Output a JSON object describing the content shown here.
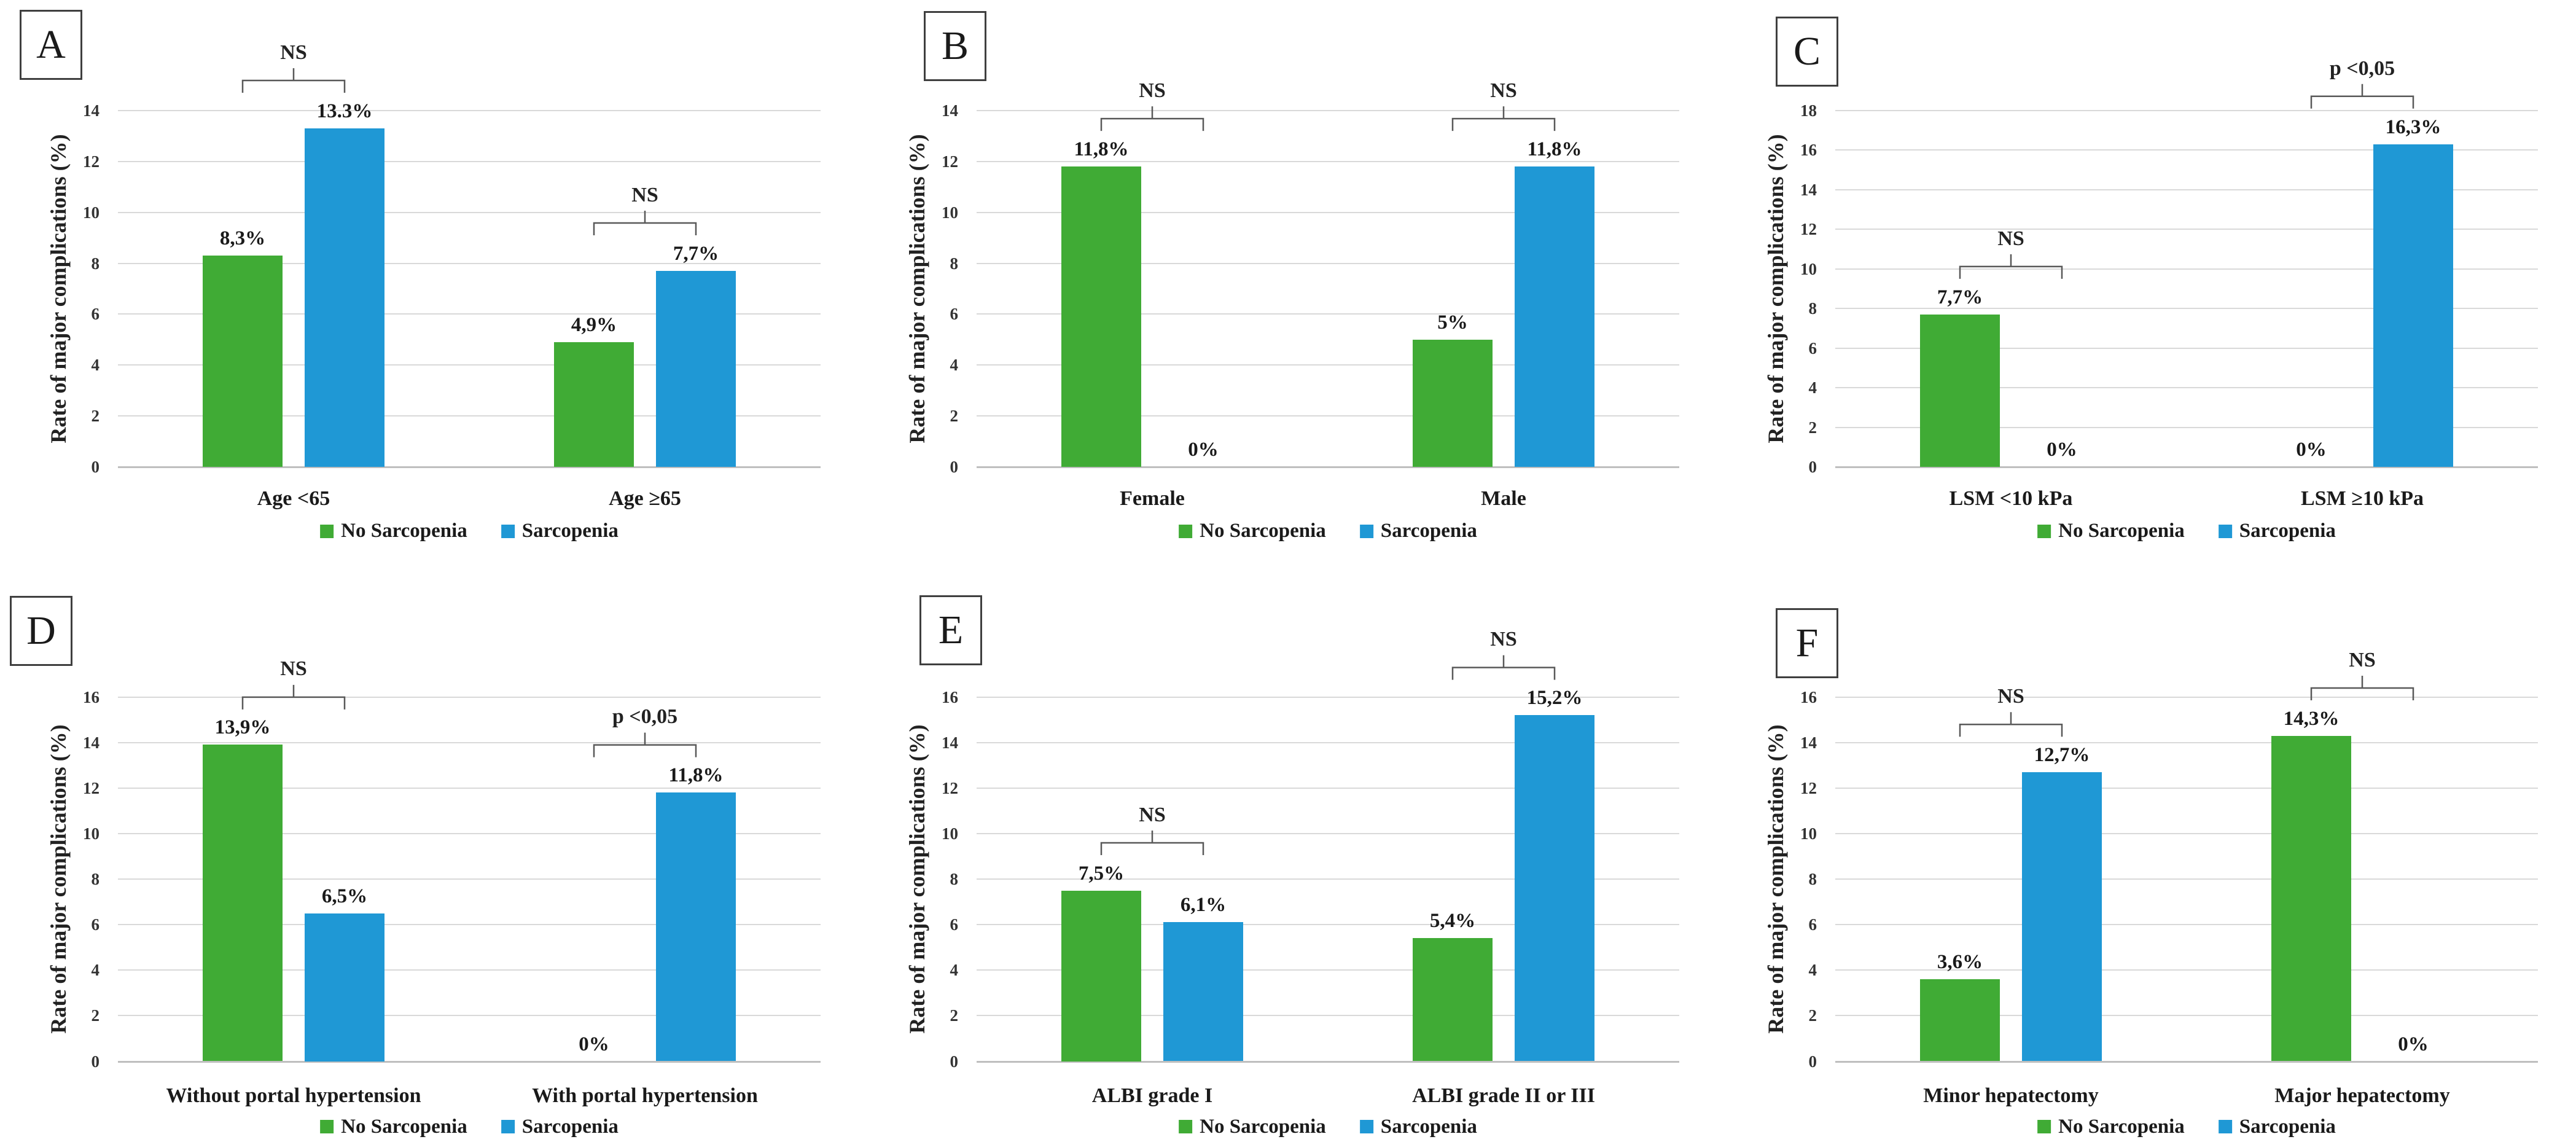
{
  "figure": {
    "ylabel": "Rate of major complications (%)",
    "legend": [
      {
        "label": "No Sarcopenia",
        "color": "#40AB35"
      },
      {
        "label": "Sarcopenia",
        "color": "#1F98D5"
      }
    ],
    "colors": {
      "no_sarcopenia": "#40AB35",
      "sarcopenia": "#1F98D5",
      "gridline": "#d9d9d9",
      "axis": "#bfbfbf",
      "bracket": "#595959"
    }
  },
  "chart_data": [
    {
      "panel": "A",
      "type": "bar",
      "ylabel": "Rate of major complications (%)",
      "ylim": [
        0,
        14
      ],
      "ytick_step": 2,
      "grid": true,
      "legend_position": "bottom",
      "series": [
        "No Sarcopenia",
        "Sarcopenia"
      ],
      "groups": [
        {
          "category": "Age <65",
          "values": [
            8.3,
            13.3
          ],
          "value_labels": [
            "8,3%",
            "13.3%"
          ],
          "significance": "NS"
        },
        {
          "category": "Age ≥65",
          "values": [
            4.9,
            7.7
          ],
          "value_labels": [
            "4,9%",
            "7,7%"
          ],
          "significance": "NS"
        }
      ]
    },
    {
      "panel": "B",
      "type": "bar",
      "ylabel": "Rate of major complications (%)",
      "ylim": [
        0,
        14
      ],
      "ytick_step": 2,
      "grid": true,
      "legend_position": "bottom",
      "series": [
        "No Sarcopenia",
        "Sarcopenia"
      ],
      "groups": [
        {
          "category": "Female",
          "values": [
            11.8,
            0
          ],
          "value_labels": [
            "11,8%",
            "0%"
          ],
          "significance": "NS"
        },
        {
          "category": "Male",
          "values": [
            5,
            11.8
          ],
          "value_labels": [
            "5%",
            "11,8%"
          ],
          "significance": "NS"
        }
      ]
    },
    {
      "panel": "C",
      "type": "bar",
      "ylabel": "Rate of major complications (%)",
      "ylim": [
        0,
        18
      ],
      "ytick_step": 2,
      "grid": true,
      "legend_position": "bottom",
      "series": [
        "No Sarcopenia",
        "Sarcopenia"
      ],
      "groups": [
        {
          "category": "LSM <10 kPa",
          "values": [
            7.7,
            0
          ],
          "value_labels": [
            "7,7%",
            "0%"
          ],
          "significance": "NS"
        },
        {
          "category": "LSM ≥10 kPa",
          "values": [
            0,
            16.3
          ],
          "value_labels": [
            "0%",
            "16,3%"
          ],
          "significance": "p <0,05"
        }
      ]
    },
    {
      "panel": "D",
      "type": "bar",
      "ylabel": "Rate of major complications (%)",
      "ylim": [
        0,
        16
      ],
      "ytick_step": 2,
      "grid": true,
      "legend_position": "bottom",
      "series": [
        "No Sarcopenia",
        "Sarcopenia"
      ],
      "groups": [
        {
          "category": "Without portal hypertension",
          "values": [
            13.9,
            6.5
          ],
          "value_labels": [
            "13,9%",
            "6,5%"
          ],
          "significance": "NS"
        },
        {
          "category": "With portal hypertension",
          "values": [
            0,
            11.8
          ],
          "value_labels": [
            "0%",
            "11,8%"
          ],
          "significance": "p <0,05"
        }
      ]
    },
    {
      "panel": "E",
      "type": "bar",
      "ylabel": "Rate of major complications (%)",
      "ylim": [
        0,
        16
      ],
      "ytick_step": 2,
      "grid": true,
      "legend_position": "bottom",
      "series": [
        "No Sarcopenia",
        "Sarcopenia"
      ],
      "groups": [
        {
          "category": "ALBI grade I",
          "values": [
            7.5,
            6.1
          ],
          "value_labels": [
            "7,5%",
            "6,1%"
          ],
          "significance": "NS"
        },
        {
          "category": "ALBI grade II or III",
          "values": [
            5.4,
            15.2
          ],
          "value_labels": [
            "5,4%",
            "15,2%"
          ],
          "significance": "NS"
        }
      ]
    },
    {
      "panel": "F",
      "type": "bar",
      "ylabel": "Rate of major complications (%)",
      "ylim": [
        0,
        16
      ],
      "ytick_step": 2,
      "grid": true,
      "legend_position": "bottom",
      "series": [
        "No Sarcopenia",
        "Sarcopenia"
      ],
      "groups": [
        {
          "category": "Minor hepatectomy",
          "values": [
            3.6,
            12.7
          ],
          "value_labels": [
            "3,6%",
            "12,7%"
          ],
          "significance": "NS"
        },
        {
          "category": "Major hepatectomy",
          "values": [
            14.3,
            0
          ],
          "value_labels": [
            "14,3%",
            "0%"
          ],
          "significance": "NS"
        }
      ]
    }
  ]
}
